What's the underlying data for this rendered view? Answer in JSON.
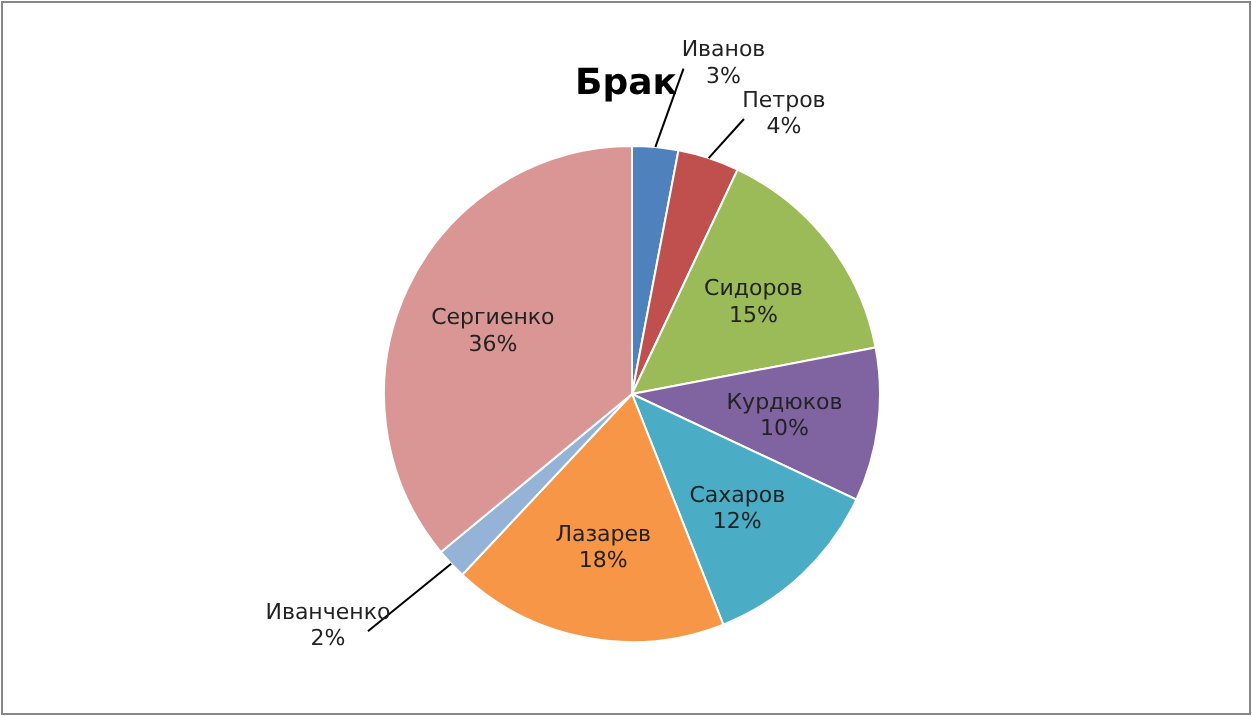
{
  "chart_data": {
    "type": "pie",
    "title": "Брак",
    "categories": [
      "Иванов",
      "Петров",
      "Сидоров",
      "Курдюков",
      "Сахаров",
      "Лазарев",
      "Иванченко",
      "Сергиенко"
    ],
    "values": [
      3,
      4,
      15,
      10,
      12,
      18,
      2,
      36
    ],
    "value_labels": [
      "3%",
      "4%",
      "15%",
      "10%",
      "12%",
      "18%",
      "2%",
      "36%"
    ],
    "colors": [
      "#4f81bd",
      "#c0504d",
      "#9bbb59",
      "#8064a2",
      "#4bacc6",
      "#f79646",
      "#95b3d7",
      "#d99694"
    ]
  }
}
